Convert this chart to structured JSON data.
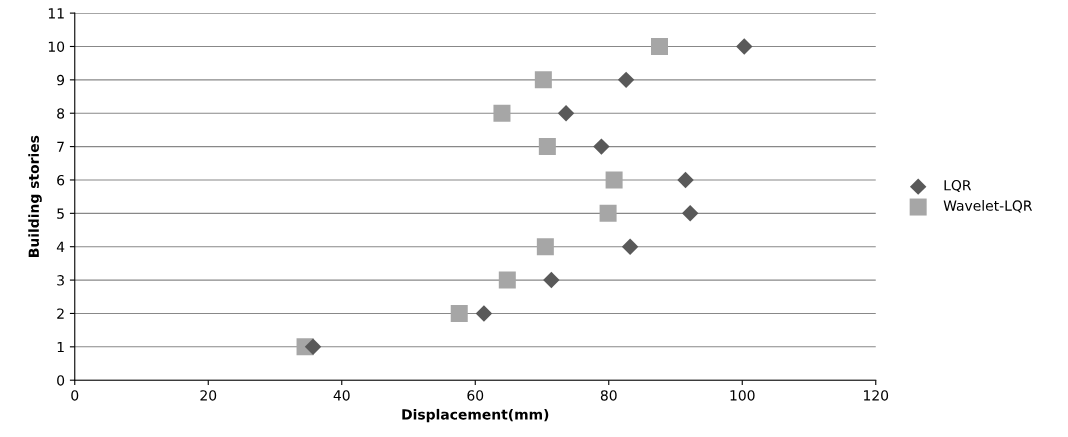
{
  "chart_data": {
    "type": "scatter",
    "xlabel": "Displacement(mm)",
    "ylabel": "Building stories",
    "xlim": [
      0,
      120
    ],
    "xticks": [
      0,
      20,
      40,
      60,
      80,
      100,
      120
    ],
    "ylim": [
      0,
      11
    ],
    "yticks": [
      0,
      1,
      2,
      3,
      4,
      5,
      6,
      7,
      8,
      9,
      10,
      11
    ],
    "grid": "y",
    "legend": "right",
    "series": [
      {
        "name": "LQR",
        "color": "#595959",
        "marker": "diamond",
        "x": [
          35.7,
          61.3,
          71.4,
          83.2,
          92.2,
          91.5,
          78.9,
          73.6,
          82.6,
          100.3
        ],
        "values": [
          1,
          2,
          3,
          4,
          5,
          6,
          7,
          8,
          9,
          10
        ]
      },
      {
        "name": "Wavelet-LQR",
        "color": "#a6a6a6",
        "marker": "square",
        "x": [
          34.5,
          57.6,
          64.8,
          70.5,
          79.9,
          80.8,
          70.8,
          64.0,
          70.2,
          87.6
        ],
        "values": [
          1,
          2,
          3,
          4,
          5,
          6,
          7,
          8,
          9,
          10
        ]
      }
    ]
  }
}
